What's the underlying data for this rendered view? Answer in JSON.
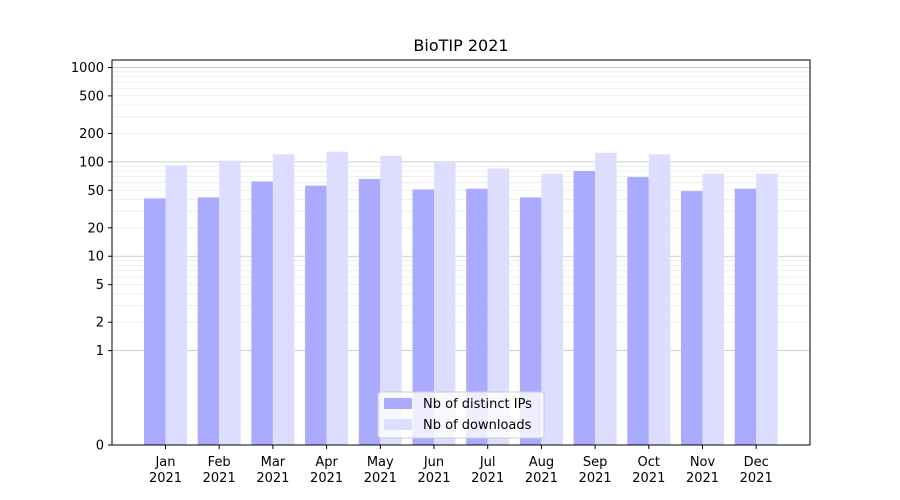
{
  "chart_data": {
    "type": "bar",
    "title": "BioTIP 2021",
    "xlabel": "",
    "ylabel": "",
    "yscale": "symlog",
    "ylim": [
      0,
      1200
    ],
    "yticks": [
      0,
      1,
      2,
      5,
      10,
      20,
      50,
      100,
      200,
      500,
      1000
    ],
    "ytick_labels": [
      "0",
      "1",
      "2",
      "5",
      "10",
      "20",
      "50",
      "100",
      "200",
      "500",
      "1000"
    ],
    "categories": [
      "Jan\n2021",
      "Feb\n2021",
      "Mar\n2021",
      "Apr\n2021",
      "May\n2021",
      "Jun\n2021",
      "Jul\n2021",
      "Aug\n2021",
      "Sep\n2021",
      "Oct\n2021",
      "Nov\n2021",
      "Dec\n2021"
    ],
    "series": [
      {
        "name": "Nb of distinct IPs",
        "color": "#aaaaff",
        "values": [
          41,
          42,
          62,
          56,
          66,
          51,
          52,
          42,
          80,
          69,
          49,
          52
        ]
      },
      {
        "name": "Nb of downloads",
        "color": "#ddddff",
        "values": [
          92,
          103,
          120,
          128,
          116,
          98,
          85,
          75,
          125,
          120,
          75,
          75
        ]
      }
    ],
    "grid": true,
    "legend_position": "lower-center"
  }
}
